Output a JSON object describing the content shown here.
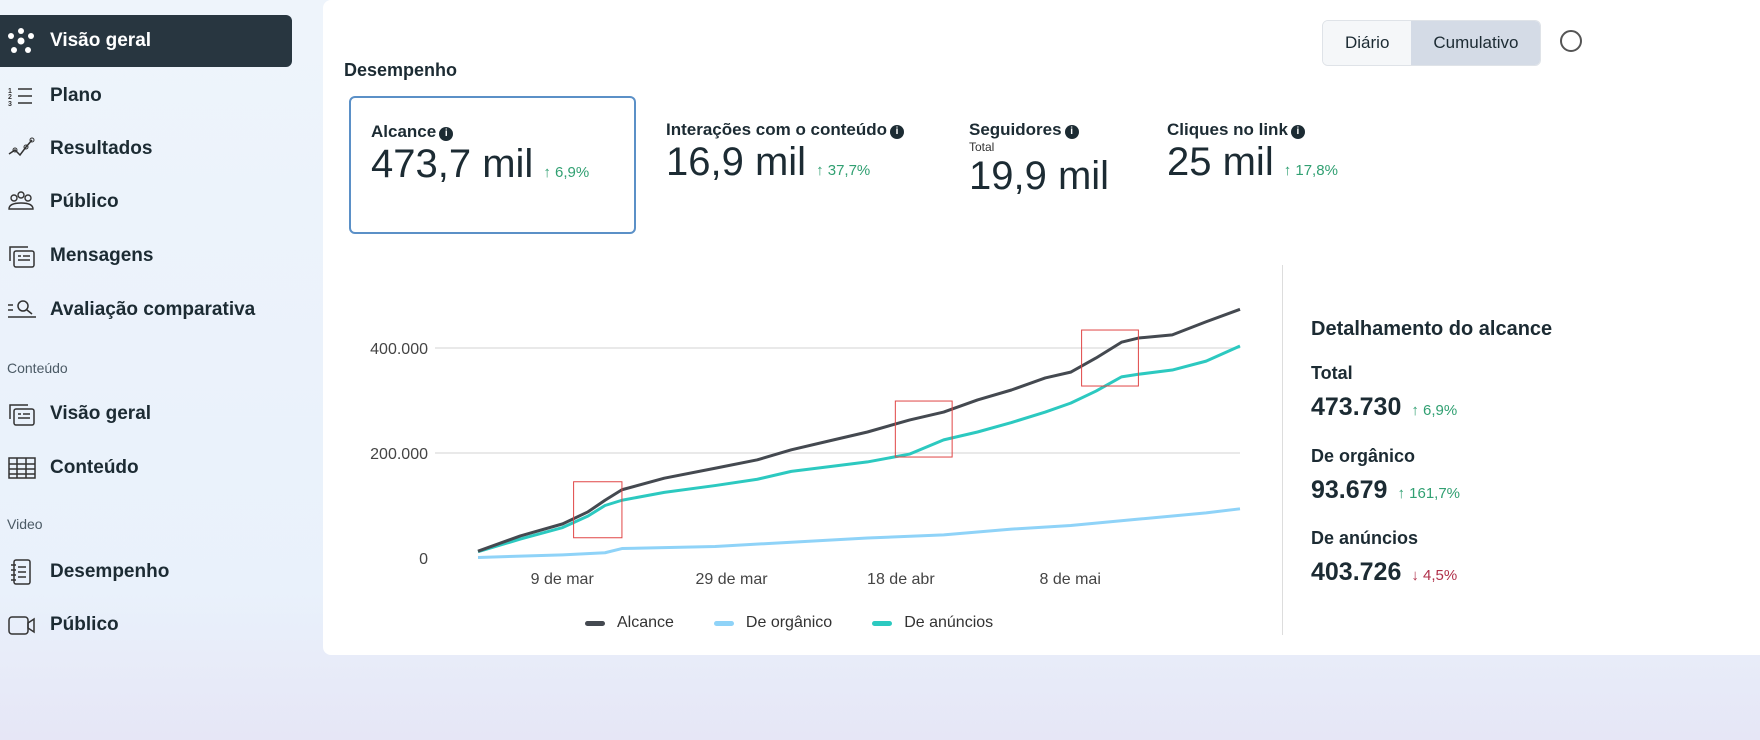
{
  "sidebar": {
    "items": [
      {
        "label": "Visão geral",
        "icon": "network-icon",
        "active": true
      },
      {
        "label": "Plano",
        "icon": "numbered-list-icon"
      },
      {
        "label": "Resultados",
        "icon": "trend-line-icon"
      },
      {
        "label": "Público",
        "icon": "people-icon"
      },
      {
        "label": "Mensagens",
        "icon": "messages-card-icon"
      },
      {
        "label": "Avaliação comparativa",
        "icon": "compare-search-icon"
      }
    ],
    "content_section": "Conteúdo",
    "content_items": [
      {
        "label": "Visão geral",
        "icon": "cards-icon"
      },
      {
        "label": "Conteúdo",
        "icon": "table-icon"
      }
    ],
    "video_section": "Video",
    "video_items": [
      {
        "label": "Desempenho",
        "icon": "notebook-icon"
      },
      {
        "label": "Público",
        "icon": "video-camera-icon"
      }
    ]
  },
  "main": {
    "title": "Desempenho",
    "toggle": {
      "daily": "Diário",
      "cumulative": "Cumulativo",
      "selected": "Cumulativo"
    },
    "kpis": [
      {
        "label": "Alcance",
        "value": "473,7 mil",
        "delta": "↑ 6,9%"
      },
      {
        "label": "Interações com o conteúdo",
        "value": "16,9 mil",
        "delta": "↑ 37,7%"
      },
      {
        "label": "Seguidores",
        "sub": "Total",
        "value": "19,9 mil"
      },
      {
        "label": "Cliques no link",
        "value": "25 mil",
        "delta": "↑ 17,8%"
      }
    ],
    "breakdown": {
      "title": "Detalhamento do alcance",
      "rows": [
        {
          "label": "Total",
          "value": "473.730",
          "delta": "↑ 6,9%",
          "dir": "up"
        },
        {
          "label": "De orgânico",
          "value": "93.679",
          "delta": "↑ 161,7%",
          "dir": "up"
        },
        {
          "label": "De anúncios",
          "value": "403.726",
          "delta": "↓ 4,5%",
          "dir": "down"
        }
      ]
    }
  },
  "chart_data": {
    "type": "line",
    "x_unit": "days since start (≈ 28 Feb)",
    "xlim": [
      0,
      90
    ],
    "ylim": [
      0,
      500000
    ],
    "yticks": [
      {
        "v": 0,
        "label": "0"
      },
      {
        "v": 200000,
        "label": "200.000"
      },
      {
        "v": 400000,
        "label": "400.000"
      }
    ],
    "xticks": [
      {
        "v": 9,
        "label": "9 de mar"
      },
      {
        "v": 29,
        "label": "29 de mar"
      },
      {
        "v": 49,
        "label": "18 de abr"
      },
      {
        "v": 69,
        "label": "8 de mai"
      }
    ],
    "highlights": [
      [
        12,
        17
      ],
      [
        50,
        56
      ],
      [
        72,
        78
      ]
    ],
    "series": [
      {
        "name": "Alcance",
        "color": "#444950",
        "points": [
          [
            0,
            13000
          ],
          [
            5,
            42000
          ],
          [
            10,
            65000
          ],
          [
            13,
            88000
          ],
          [
            15,
            110000
          ],
          [
            17,
            130000
          ],
          [
            22,
            152000
          ],
          [
            28,
            171000
          ],
          [
            33,
            187000
          ],
          [
            37,
            206000
          ],
          [
            42,
            225000
          ],
          [
            46,
            240000
          ],
          [
            51,
            263000
          ],
          [
            55,
            278000
          ],
          [
            59,
            301000
          ],
          [
            63,
            320000
          ],
          [
            67,
            343000
          ],
          [
            70,
            354000
          ],
          [
            73,
            381000
          ],
          [
            76,
            411000
          ],
          [
            78,
            419000
          ],
          [
            82,
            425000
          ],
          [
            86,
            450000
          ],
          [
            90,
            473730
          ]
        ]
      },
      {
        "name": "De orgânico",
        "color": "#8fd3f8",
        "points": [
          [
            0,
            1000
          ],
          [
            10,
            6000
          ],
          [
            15,
            10000
          ],
          [
            17,
            18000
          ],
          [
            28,
            22000
          ],
          [
            37,
            30000
          ],
          [
            46,
            38000
          ],
          [
            55,
            44000
          ],
          [
            63,
            55000
          ],
          [
            70,
            62000
          ],
          [
            78,
            74000
          ],
          [
            86,
            86000
          ],
          [
            90,
            93679
          ]
        ]
      },
      {
        "name": "De anúncios",
        "color": "#2cc9c0",
        "points": [
          [
            0,
            12000
          ],
          [
            5,
            36000
          ],
          [
            10,
            58000
          ],
          [
            13,
            80000
          ],
          [
            15,
            100000
          ],
          [
            17,
            110000
          ],
          [
            22,
            125000
          ],
          [
            28,
            138000
          ],
          [
            33,
            150000
          ],
          [
            37,
            165000
          ],
          [
            42,
            175000
          ],
          [
            46,
            183000
          ],
          [
            51,
            198000
          ],
          [
            55,
            225000
          ],
          [
            59,
            240000
          ],
          [
            63,
            258000
          ],
          [
            67,
            278000
          ],
          [
            70,
            295000
          ],
          [
            73,
            318000
          ],
          [
            76,
            345000
          ],
          [
            78,
            350000
          ],
          [
            82,
            358000
          ],
          [
            86,
            375000
          ],
          [
            90,
            403726
          ]
        ]
      }
    ]
  }
}
